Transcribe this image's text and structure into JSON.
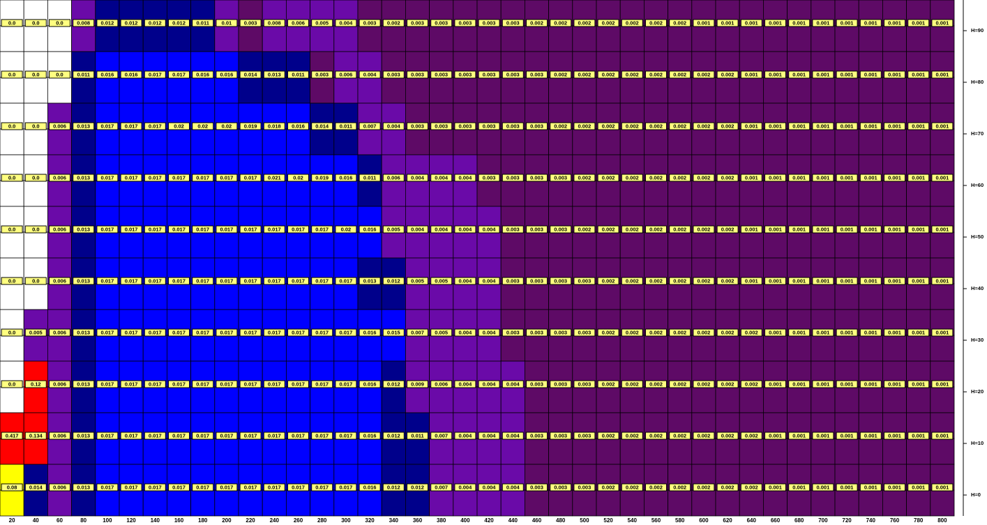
{
  "chart_data": {
    "type": "heatmap",
    "categories": [
      20,
      40,
      60,
      80,
      100,
      120,
      140,
      160,
      180,
      200,
      220,
      240,
      260,
      280,
      300,
      320,
      340,
      360,
      380,
      400,
      420,
      440,
      460,
      480,
      500,
      520,
      540,
      560,
      580,
      600,
      620,
      640,
      660,
      680,
      700,
      720,
      740,
      760,
      780,
      800
    ],
    "color_scale": [
      {
        "min": 0.1,
        "color": "#ff0000"
      },
      {
        "min": 0.05,
        "color": "#ffff00"
      },
      {
        "min": 0.015,
        "color": "#0000ff"
      },
      {
        "min": 0.011,
        "color": "#00008b"
      },
      {
        "min": 0.004,
        "color": "#6a0aa8"
      },
      {
        "min": 0.001,
        "color": "#5e0a66"
      },
      {
        "min": 0,
        "color": "#ffffff"
      }
    ],
    "series": [
      {
        "name": "H=90",
        "values": [
          0,
          0,
          0,
          0.008,
          0.012,
          0.012,
          0.012,
          0.012,
          0.011,
          0.01,
          0.003,
          0.008,
          0.006,
          0.005,
          0.004,
          0.003,
          0.002,
          0.003,
          0.003,
          0.003,
          0.003,
          0.003,
          0.002,
          0.002,
          0.002,
          0.002,
          0.002,
          0.002,
          0.002,
          0.001,
          0.001,
          0.001,
          0.001,
          0.001,
          0.001,
          0.001,
          0.001,
          0.001,
          0.001,
          0.001
        ],
        "value_labels": [
          "0.0",
          "0.0",
          "0.0",
          "0.008",
          "0.012",
          "0.012",
          "0.012",
          "0.012",
          "0.011",
          "0.01",
          "0.003",
          "0.008",
          "0.006",
          "0.005",
          "0.004",
          "0.003",
          "0.002",
          "0.003",
          "0.003",
          "0.003",
          "0.003",
          "0.003",
          "0.002",
          "0.002",
          "0.002",
          "0.002",
          "0.002",
          "0.002",
          "0.002",
          "0.001",
          "0.001",
          "0.001",
          "0.001",
          "0.001",
          "0.001",
          "0.001",
          "0.001",
          "0.001",
          "0.001",
          "0.001"
        ]
      },
      {
        "name": "H=80",
        "values": [
          0,
          0,
          0,
          0.011,
          0.016,
          0.016,
          0.017,
          0.017,
          0.016,
          0.016,
          0.014,
          0.013,
          0.011,
          0.003,
          0.006,
          0.004,
          0.003,
          0.003,
          0.003,
          0.003,
          0.003,
          0.003,
          0.003,
          0.002,
          0.002,
          0.002,
          0.002,
          0.002,
          0.002,
          0.002,
          0.002,
          0.001,
          0.001,
          0.001,
          0.001,
          0.001,
          0.001,
          0.001,
          0.001,
          0.001
        ],
        "value_labels": [
          "0.0",
          "0.0",
          "0.0",
          "0.011",
          "0.016",
          "0.016",
          "0.017",
          "0.017",
          "0.016",
          "0.016",
          "0.014",
          "0.013",
          "0.011",
          "0.003",
          "0.006",
          "0.004",
          "0.003",
          "0.003",
          "0.003",
          "0.003",
          "0.003",
          "0.003",
          "0.003",
          "0.002",
          "0.002",
          "0.002",
          "0.002",
          "0.002",
          "0.002",
          "0.002",
          "0.002",
          "0.001",
          "0.001",
          "0.001",
          "0.001",
          "0.001",
          "0.001",
          "0.001",
          "0.001",
          "0.001"
        ]
      },
      {
        "name": "H=70",
        "values": [
          0,
          0,
          0.006,
          0.013,
          0.017,
          0.017,
          0.017,
          0.02,
          0.02,
          0.02,
          0.019,
          0.018,
          0.016,
          0.014,
          0.011,
          0.007,
          0.004,
          0.003,
          0.003,
          0.003,
          0.003,
          0.003,
          0.003,
          0.002,
          0.002,
          0.002,
          0.002,
          0.002,
          0.002,
          0.002,
          0.002,
          0.001,
          0.001,
          0.001,
          0.001,
          0.001,
          0.001,
          0.001,
          0.001,
          0.001
        ],
        "value_labels": [
          "0.0",
          "0.0",
          "0.006",
          "0.013",
          "0.017",
          "0.017",
          "0.017",
          "0.02",
          "0.02",
          "0.02",
          "0.019",
          "0.018",
          "0.016",
          "0.014",
          "0.011",
          "0.007",
          "0.004",
          "0.003",
          "0.003",
          "0.003",
          "0.003",
          "0.003",
          "0.003",
          "0.002",
          "0.002",
          "0.002",
          "0.002",
          "0.002",
          "0.002",
          "0.002",
          "0.002",
          "0.001",
          "0.001",
          "0.001",
          "0.001",
          "0.001",
          "0.001",
          "0.001",
          "0.001",
          "0.001"
        ]
      },
      {
        "name": "H=60",
        "values": [
          0,
          0,
          0.006,
          0.013,
          0.017,
          0.017,
          0.017,
          0.017,
          0.017,
          0.017,
          0.017,
          0.021,
          0.02,
          0.019,
          0.016,
          0.011,
          0.006,
          0.004,
          0.004,
          0.004,
          0.003,
          0.003,
          0.003,
          0.003,
          0.002,
          0.002,
          0.002,
          0.002,
          0.002,
          0.002,
          0.002,
          0.001,
          0.001,
          0.001,
          0.001,
          0.001,
          0.001,
          0.001,
          0.001,
          0.001
        ],
        "value_labels": [
          "0.0",
          "0.0",
          "0.006",
          "0.013",
          "0.017",
          "0.017",
          "0.017",
          "0.017",
          "0.017",
          "0.017",
          "0.017",
          "0.021",
          "0.02",
          "0.019",
          "0.016",
          "0.011",
          "0.006",
          "0.004",
          "0.004",
          "0.004",
          "0.003",
          "0.003",
          "0.003",
          "0.003",
          "0.002",
          "0.002",
          "0.002",
          "0.002",
          "0.002",
          "0.002",
          "0.002",
          "0.001",
          "0.001",
          "0.001",
          "0.001",
          "0.001",
          "0.001",
          "0.001",
          "0.001",
          "0.001"
        ]
      },
      {
        "name": "H=50",
        "values": [
          0,
          0,
          0.006,
          0.013,
          0.017,
          0.017,
          0.017,
          0.017,
          0.017,
          0.017,
          0.017,
          0.017,
          0.017,
          0.017,
          0.02,
          0.016,
          0.005,
          0.004,
          0.004,
          0.004,
          0.004,
          0.003,
          0.003,
          0.003,
          0.002,
          0.002,
          0.002,
          0.002,
          0.002,
          0.002,
          0.002,
          0.001,
          0.001,
          0.001,
          0.001,
          0.001,
          0.001,
          0.001,
          0.001,
          0.001
        ],
        "value_labels": [
          "0.0",
          "0.0",
          "0.006",
          "0.013",
          "0.017",
          "0.017",
          "0.017",
          "0.017",
          "0.017",
          "0.017",
          "0.017",
          "0.017",
          "0.017",
          "0.017",
          "0.02",
          "0.016",
          "0.005",
          "0.004",
          "0.004",
          "0.004",
          "0.004",
          "0.003",
          "0.003",
          "0.003",
          "0.002",
          "0.002",
          "0.002",
          "0.002",
          "0.002",
          "0.002",
          "0.002",
          "0.001",
          "0.001",
          "0.001",
          "0.001",
          "0.001",
          "0.001",
          "0.001",
          "0.001",
          "0.001"
        ]
      },
      {
        "name": "H=40",
        "values": [
          0,
          0,
          0.006,
          0.013,
          0.017,
          0.017,
          0.017,
          0.017,
          0.017,
          0.017,
          0.017,
          0.017,
          0.017,
          0.017,
          0.017,
          0.013,
          0.012,
          0.005,
          0.005,
          0.004,
          0.004,
          0.003,
          0.003,
          0.003,
          0.003,
          0.002,
          0.002,
          0.002,
          0.002,
          0.002,
          0.002,
          0.001,
          0.001,
          0.001,
          0.001,
          0.001,
          0.001,
          0.001,
          0.001,
          0.001
        ],
        "value_labels": [
          "0.0",
          "0.0",
          "0.006",
          "0.013",
          "0.017",
          "0.017",
          "0.017",
          "0.017",
          "0.017",
          "0.017",
          "0.017",
          "0.017",
          "0.017",
          "0.017",
          "0.017",
          "0.013",
          "0.012",
          "0.005",
          "0.005",
          "0.004",
          "0.004",
          "0.003",
          "0.003",
          "0.003",
          "0.003",
          "0.002",
          "0.002",
          "0.002",
          "0.002",
          "0.002",
          "0.002",
          "0.001",
          "0.001",
          "0.001",
          "0.001",
          "0.001",
          "0.001",
          "0.001",
          "0.001",
          "0.001"
        ]
      },
      {
        "name": "H=30",
        "values": [
          0,
          0.005,
          0.006,
          0.013,
          0.017,
          0.017,
          0.017,
          0.017,
          0.017,
          0.017,
          0.017,
          0.017,
          0.017,
          0.017,
          0.017,
          0.016,
          0.015,
          0.007,
          0.005,
          0.004,
          0.004,
          0.003,
          0.003,
          0.003,
          0.003,
          0.002,
          0.002,
          0.002,
          0.002,
          0.002,
          0.002,
          0.002,
          0.001,
          0.001,
          0.001,
          0.001,
          0.001,
          0.001,
          0.001,
          0.001
        ],
        "value_labels": [
          "0.0",
          "0.005",
          "0.006",
          "0.013",
          "0.017",
          "0.017",
          "0.017",
          "0.017",
          "0.017",
          "0.017",
          "0.017",
          "0.017",
          "0.017",
          "0.017",
          "0.017",
          "0.016",
          "0.015",
          "0.007",
          "0.005",
          "0.004",
          "0.004",
          "0.003",
          "0.003",
          "0.003",
          "0.003",
          "0.002",
          "0.002",
          "0.002",
          "0.002",
          "0.002",
          "0.002",
          "0.002",
          "0.001",
          "0.001",
          "0.001",
          "0.001",
          "0.001",
          "0.001",
          "0.001",
          "0.001"
        ]
      },
      {
        "name": "H=20",
        "values": [
          0,
          0.12,
          0.006,
          0.013,
          0.017,
          0.017,
          0.017,
          0.017,
          0.017,
          0.017,
          0.017,
          0.017,
          0.017,
          0.017,
          0.017,
          0.016,
          0.012,
          0.009,
          0.006,
          0.004,
          0.004,
          0.004,
          0.003,
          0.003,
          0.003,
          0.002,
          0.002,
          0.002,
          0.002,
          0.002,
          0.002,
          0.002,
          0.001,
          0.001,
          0.001,
          0.001,
          0.001,
          0.001,
          0.001,
          0.001
        ],
        "value_labels": [
          "0.0",
          "0.12",
          "0.006",
          "0.013",
          "0.017",
          "0.017",
          "0.017",
          "0.017",
          "0.017",
          "0.017",
          "0.017",
          "0.017",
          "0.017",
          "0.017",
          "0.017",
          "0.016",
          "0.012",
          "0.009",
          "0.006",
          "0.004",
          "0.004",
          "0.004",
          "0.003",
          "0.003",
          "0.003",
          "0.002",
          "0.002",
          "0.002",
          "0.002",
          "0.002",
          "0.002",
          "0.002",
          "0.001",
          "0.001",
          "0.001",
          "0.001",
          "0.001",
          "0.001",
          "0.001",
          "0.001"
        ]
      },
      {
        "name": "H=10",
        "values": [
          0.417,
          0.134,
          0.006,
          0.013,
          0.017,
          0.017,
          0.017,
          0.017,
          0.017,
          0.017,
          0.017,
          0.017,
          0.017,
          0.017,
          0.017,
          0.016,
          0.012,
          0.011,
          0.007,
          0.004,
          0.004,
          0.004,
          0.003,
          0.003,
          0.003,
          0.002,
          0.002,
          0.002,
          0.002,
          0.002,
          0.002,
          0.002,
          0.001,
          0.001,
          0.001,
          0.001,
          0.001,
          0.001,
          0.001,
          0.001
        ],
        "value_labels": [
          "0.417",
          "0.134",
          "0.006",
          "0.013",
          "0.017",
          "0.017",
          "0.017",
          "0.017",
          "0.017",
          "0.017",
          "0.017",
          "0.017",
          "0.017",
          "0.017",
          "0.017",
          "0.016",
          "0.012",
          "0.011",
          "0.007",
          "0.004",
          "0.004",
          "0.004",
          "0.003",
          "0.003",
          "0.003",
          "0.002",
          "0.002",
          "0.002",
          "0.002",
          "0.002",
          "0.002",
          "0.002",
          "0.001",
          "0.001",
          "0.001",
          "0.001",
          "0.001",
          "0.001",
          "0.001",
          "0.001"
        ]
      },
      {
        "name": "H=0",
        "values": [
          0.08,
          0.014,
          0.006,
          0.013,
          0.017,
          0.017,
          0.017,
          0.017,
          0.017,
          0.017,
          0.017,
          0.017,
          0.017,
          0.017,
          0.017,
          0.016,
          0.012,
          0.012,
          0.007,
          0.004,
          0.004,
          0.004,
          0.003,
          0.003,
          0.003,
          0.002,
          0.002,
          0.002,
          0.002,
          0.002,
          0.002,
          0.002,
          0.001,
          0.001,
          0.001,
          0.001,
          0.001,
          0.001,
          0.001,
          0.001
        ],
        "value_labels": [
          "0.08",
          "0.014",
          "0.006",
          "0.013",
          "0.017",
          "0.017",
          "0.017",
          "0.017",
          "0.017",
          "0.017",
          "0.017",
          "0.017",
          "0.017",
          "0.017",
          "0.017",
          "0.016",
          "0.012",
          "0.012",
          "0.007",
          "0.004",
          "0.004",
          "0.004",
          "0.003",
          "0.003",
          "0.003",
          "0.002",
          "0.002",
          "0.002",
          "0.002",
          "0.002",
          "0.002",
          "0.002",
          "0.001",
          "0.001",
          "0.001",
          "0.001",
          "0.001",
          "0.001",
          "0.001",
          "0.001"
        ]
      }
    ]
  }
}
